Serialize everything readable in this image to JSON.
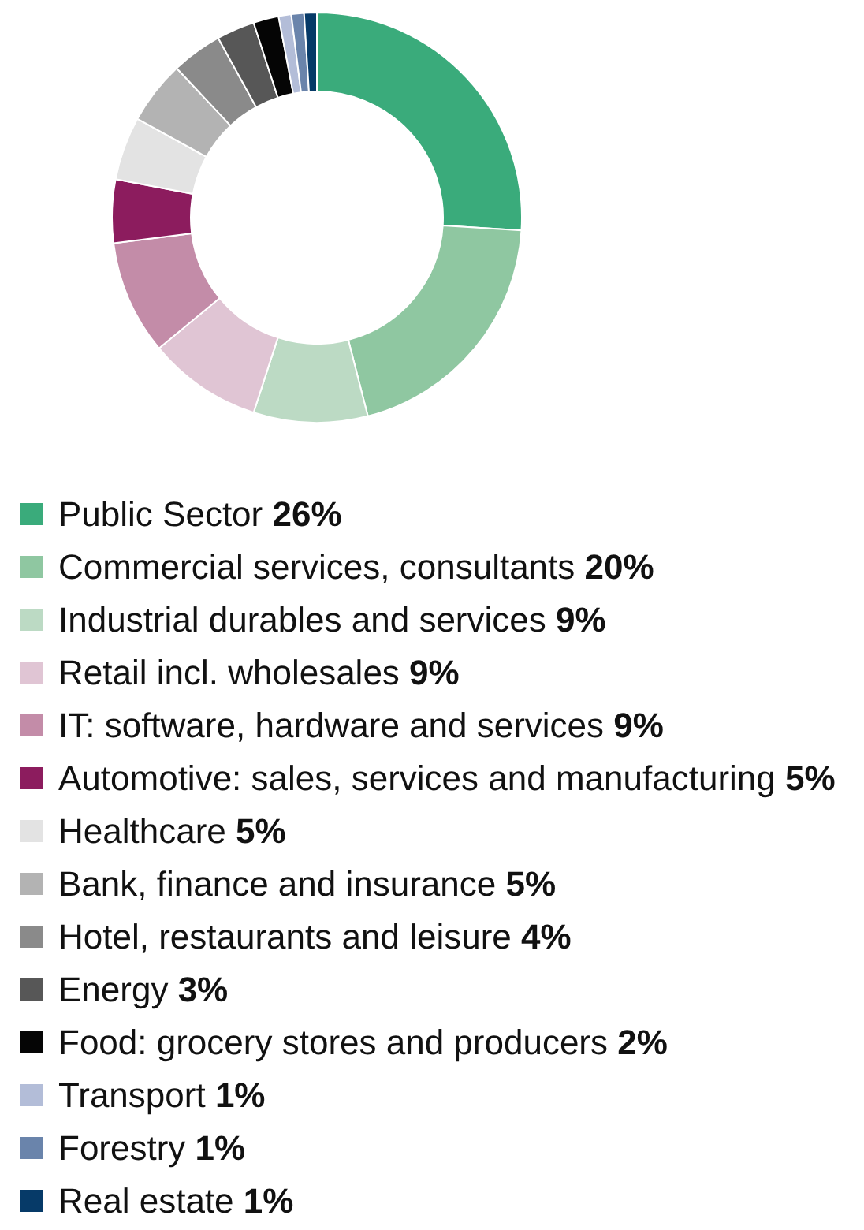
{
  "chart_data": {
    "type": "donut",
    "categories": [
      "Public Sector",
      "Commercial services, consultants",
      "Industrial durables and services",
      "Retail incl. wholesales",
      "IT: software, hardware and services",
      "Automotive: sales, services and manufacturing",
      "Healthcare",
      "Bank, finance and insurance",
      "Hotel, restaurants and leisure",
      "Energy",
      "Food: grocery stores and producers",
      "Transport",
      "Forestry",
      "Real estate"
    ],
    "values": [
      26,
      20,
      9,
      9,
      9,
      5,
      5,
      5,
      4,
      3,
      2,
      1,
      1,
      1
    ],
    "value_labels": [
      "26%",
      "20%",
      "9%",
      "9%",
      "9%",
      "5%",
      "5%",
      "5%",
      "4%",
      "3%",
      "2%",
      "1%",
      "1%",
      "1%"
    ],
    "colors": [
      "#3aab7b",
      "#8fc7a1",
      "#bcdac4",
      "#e0c5d4",
      "#c38ca8",
      "#8c1c5e",
      "#e3e3e3",
      "#b3b3b3",
      "#8a8a8a",
      "#575757",
      "#050505",
      "#b3bdd8",
      "#6a84ab",
      "#063a68"
    ],
    "legend": "bottom"
  }
}
